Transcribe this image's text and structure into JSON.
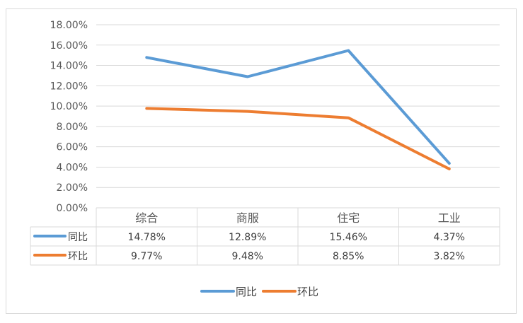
{
  "chart_data": {
    "type": "line",
    "categories": [
      "综合",
      "商服",
      "住宅",
      "工业"
    ],
    "series": [
      {
        "name": "同比",
        "color": "#5b9bd5",
        "values": [
          14.78,
          12.89,
          15.46,
          4.37
        ],
        "labels": [
          "14.78%",
          "12.89%",
          "15.46%",
          "4.37%"
        ]
      },
      {
        "name": "环比",
        "color": "#ed7d31",
        "values": [
          9.77,
          9.48,
          8.85,
          3.82
        ],
        "labels": [
          "9.77%",
          "9.48%",
          "8.85%",
          "3.82%"
        ]
      }
    ],
    "ylim": [
      0,
      18
    ],
    "ytick_labels": [
      "0.00%",
      "2.00%",
      "4.00%",
      "6.00%",
      "8.00%",
      "10.00%",
      "12.00%",
      "14.00%",
      "16.00%",
      "18.00%"
    ],
    "grid": true,
    "data_table": true,
    "legend": "bottom"
  }
}
